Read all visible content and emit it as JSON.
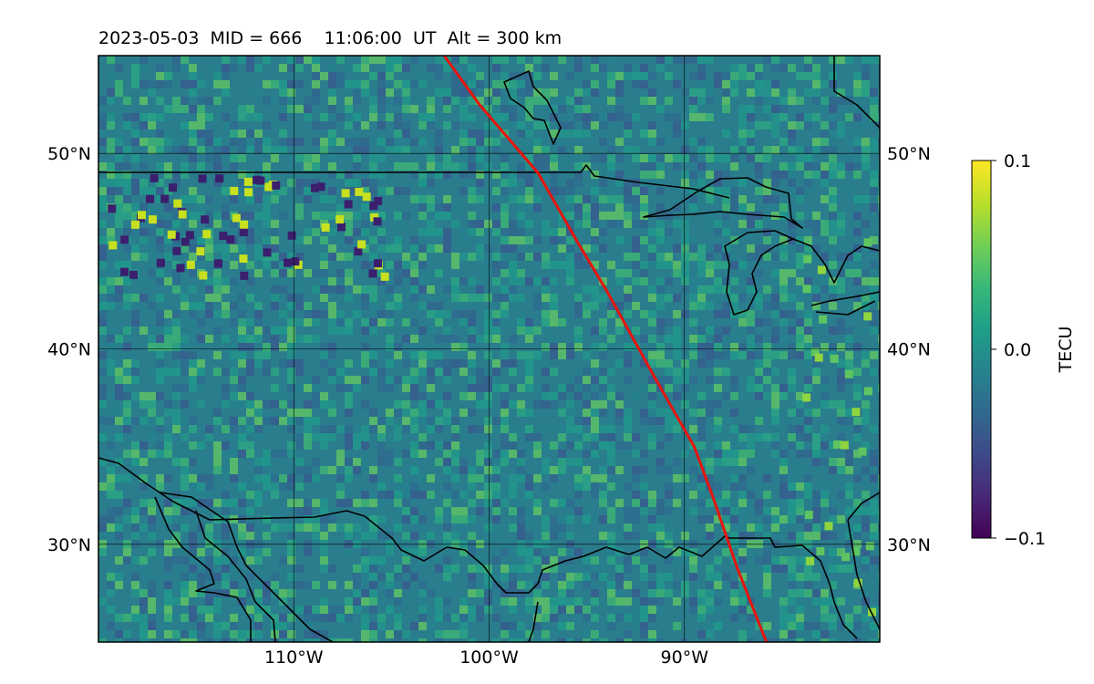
{
  "title": "2023-05-03  MID = 666    11:06:00  UT  Alt = 300 km",
  "map": {
    "lon_range": [
      -120,
      -80
    ],
    "lat_range": [
      25,
      55
    ],
    "lon_ticks": [
      {
        "value": -110,
        "label": "110°W"
      },
      {
        "value": -100,
        "label": "100°W"
      },
      {
        "value": -90,
        "label": "90°W"
      }
    ],
    "lat_ticks": [
      {
        "value": 50,
        "label": "50°N"
      },
      {
        "value": 40,
        "label": "40°N"
      },
      {
        "value": 30,
        "label": "30°N"
      }
    ],
    "grid": true,
    "track_color": "#e8140c",
    "coastline_color": "#000000",
    "track": [
      [
        -102.3,
        55
      ],
      [
        -100.5,
        52.5
      ],
      [
        -97.5,
        49
      ],
      [
        -95.5,
        45.5
      ],
      [
        -94,
        43
      ],
      [
        -91.5,
        38.5
      ],
      [
        -89.5,
        35
      ],
      [
        -88.5,
        32.3
      ],
      [
        -87.3,
        28.8
      ],
      [
        -85.8,
        25
      ]
    ]
  },
  "colorbar": {
    "label": "TECU",
    "min": -0.1,
    "max": 0.1,
    "ticks": [
      {
        "value": 0.1,
        "label": "0.1"
      },
      {
        "value": 0.0,
        "label": "0.0"
      },
      {
        "value": -0.1,
        "label": "−0.1"
      }
    ],
    "colormap": "viridis",
    "colormap_stops": [
      "#440154",
      "#482878",
      "#3e4989",
      "#31688e",
      "#26828e",
      "#1f9e89",
      "#35b779",
      "#6ece58",
      "#b5de2b",
      "#fde725"
    ]
  }
}
